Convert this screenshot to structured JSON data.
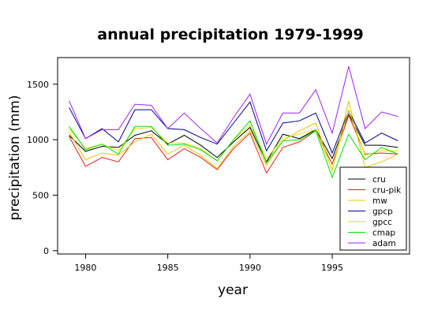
{
  "chart_data": {
    "type": "line",
    "title": "annual precipitation 1979-1999",
    "xlabel": "year",
    "ylabel": "precipitation (mm)",
    "xlim": [
      1978.3,
      1999.7
    ],
    "ylim": [
      -30,
      1740
    ],
    "x_ticks": [
      "1980",
      "1985",
      "1990",
      "1995"
    ],
    "y_ticks": [
      "0",
      "500",
      "1000",
      "1500"
    ],
    "legend_position": "bottom-right",
    "x": [
      1979,
      1980,
      1981,
      1982,
      1983,
      1984,
      1985,
      1986,
      1987,
      1988,
      1989,
      1990,
      1991,
      1992,
      1993,
      1994,
      1995,
      1996,
      1997,
      1998,
      1999
    ],
    "series": [
      {
        "name": "cru",
        "color": "#000000",
        "values": [
          1040,
          895,
          940,
          930,
          1040,
          1080,
          960,
          1040,
          950,
          840,
          980,
          1110,
          800,
          1050,
          1010,
          1090,
          830,
          1230,
          950,
          950,
          930
        ]
      },
      {
        "name": "cru-pik",
        "color": "#e0221b",
        "values": [
          1030,
          760,
          840,
          800,
          1010,
          1020,
          820,
          920,
          840,
          730,
          920,
          1060,
          700,
          930,
          980,
          1080,
          780,
          1220,
          870,
          880,
          870
        ]
      },
      {
        "name": "mw",
        "color": "#e8c400",
        "values": [
          1070,
          820,
          880,
          860,
          980,
          1050,
          870,
          950,
          860,
          740,
          940,
          1080,
          770,
          990,
          1080,
          1150,
          720,
          1350,
          750,
          800,
          870
        ]
      },
      {
        "name": "gpcp",
        "color": "#00008b",
        "values": [
          1290,
          1010,
          1100,
          980,
          1270,
          1270,
          1100,
          1090,
          1020,
          960,
          1150,
          1340,
          900,
          1150,
          1170,
          1240,
          880,
          1260,
          970,
          1060,
          990
        ]
      },
      {
        "name": "gpcc",
        "color": "#e0e000",
        "values": [
          1100,
          920,
          960,
          900,
          1100,
          1110,
          970,
          970,
          920,
          810,
          1000,
          1130,
          830,
          1010,
          1050,
          1090,
          730,
          1270,
          860,
          900,
          900
        ]
      },
      {
        "name": "cmap",
        "color": "#00e000",
        "values": [
          1120,
          910,
          960,
          870,
          1120,
          1120,
          950,
          960,
          910,
          810,
          1000,
          1170,
          790,
          990,
          1000,
          1080,
          660,
          1050,
          820,
          930,
          870
        ]
      },
      {
        "name": "adam",
        "color": "#a020f0",
        "values": [
          1350,
          1010,
          1090,
          1090,
          1320,
          1310,
          1100,
          1240,
          1100,
          970,
          1200,
          1410,
          960,
          1240,
          1240,
          1450,
          1060,
          1660,
          1100,
          1250,
          1210
        ]
      }
    ]
  }
}
